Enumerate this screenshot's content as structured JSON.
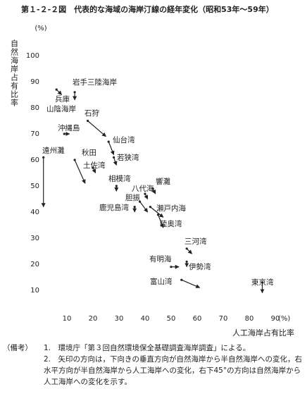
{
  "chart_data": {
    "type": "scatter",
    "title": "第１-２-２図　代表的な海域の海岸汀線の経年変化（昭和53年～59年）",
    "y_label": "自然海岸占有比率",
    "y_unit": "(%)",
    "x_label": "人工海岸占有比率",
    "x_unit": "(%)",
    "xlim": [
      0,
      90
    ],
    "xticks": [
      10,
      20,
      30,
      40,
      50,
      60,
      70,
      80,
      90
    ],
    "ylim": [
      0,
      100
    ],
    "yticks": [
      10,
      20,
      30,
      40,
      50,
      60,
      70,
      80,
      90,
      100
    ],
    "color": "#222222",
    "series": [
      {
        "name": "兵庫山陰海岸",
        "from": [
          6,
          87
        ],
        "to": [
          8,
          85
        ]
      },
      {
        "name": "岩手三陸海岸",
        "from": [
          13,
          86
        ],
        "to": [
          13,
          83
        ]
      },
      {
        "name": "沖縄島",
        "from": [
          9,
          70
        ],
        "to": [
          11,
          70
        ]
      },
      {
        "name": "石狩",
        "from": [
          18,
          75
        ],
        "to": [
          25,
          69
        ]
      },
      {
        "name": "仙台湾",
        "from": [
          26,
          67
        ],
        "to": [
          28,
          62
        ]
      },
      {
        "name": "若狭湾",
        "from": [
          28,
          61
        ],
        "to": [
          29,
          58
        ]
      },
      {
        "name": "遠州灘",
        "from": [
          1,
          61
        ],
        "to": [
          1,
          42
        ]
      },
      {
        "name": "秋田",
        "from": [
          13,
          60
        ],
        "to": [
          17,
          51
        ]
      },
      {
        "name": "土佐湾",
        "from": [
          20,
          57
        ],
        "to": [
          21,
          55
        ]
      },
      {
        "name": "相模湾",
        "from": [
          29,
          50
        ],
        "to": [
          29,
          48
        ]
      },
      {
        "name": "響灘",
        "from": [
          43,
          49
        ],
        "to": [
          44,
          47
        ]
      },
      {
        "name": "八代海",
        "from": [
          40,
          47
        ],
        "to": [
          41,
          45
        ]
      },
      {
        "name": "胆振",
        "from": [
          38,
          44
        ],
        "to": [
          41,
          40
        ]
      },
      {
        "name": "瀬戸内海",
        "from": [
          42,
          42
        ],
        "to": [
          47,
          38
        ]
      },
      {
        "name": "鹿児島湾",
        "from": [
          36,
          42
        ],
        "to": [
          36,
          40
        ]
      },
      {
        "name": "陸奥湾",
        "from": [
          45,
          39
        ],
        "to": [
          47,
          34
        ]
      },
      {
        "name": "三河湾",
        "from": [
          56,
          26
        ],
        "to": [
          58,
          24
        ]
      },
      {
        "name": "有明海",
        "from": [
          50,
          19
        ],
        "to": [
          53,
          19
        ]
      },
      {
        "name": "伊勢湾",
        "from": [
          56,
          21
        ],
        "to": [
          56,
          19
        ]
      },
      {
        "name": "富山湾",
        "from": [
          54,
          14
        ],
        "to": [
          61,
          11
        ]
      },
      {
        "name": "東京湾",
        "from": [
          85,
          13
        ],
        "to": [
          85,
          9
        ]
      }
    ]
  },
  "notes": {
    "heading": "（備考）",
    "items": [
      "1.　環境庁「第３回自然環境保全基礎調査海岸調査」による。",
      "2.　矢印の方向は，下向きの垂直方向が自然海岸から半自然海岸への変化，右水平方向が半自然海岸から人工海岸への変化，右下45°の方向は自然海岸から人工海岸への変化を示す。"
    ]
  }
}
